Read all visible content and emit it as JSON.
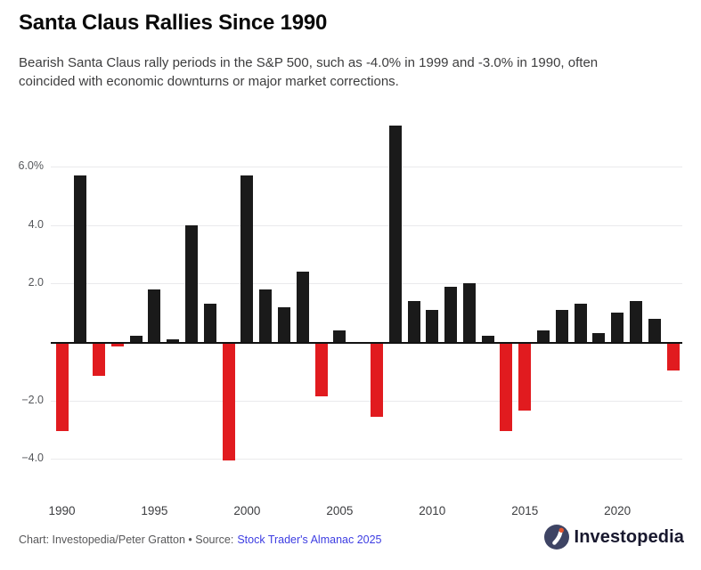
{
  "header": {
    "title": "Santa Claus Rallies Since 1990",
    "subtitle": "Bearish Santa Claus rally periods in the S&P 500, such as -4.0% in 1999 and -3.0% in 1990, often coincided with economic downturns or major market corrections."
  },
  "chart_data": {
    "type": "bar",
    "title": "Santa Claus Rallies Since 1990",
    "unit": "%",
    "x": [
      1990,
      1991,
      1992,
      1993,
      1994,
      1995,
      1996,
      1997,
      1998,
      1999,
      2000,
      2001,
      2002,
      2003,
      2004,
      2005,
      2006,
      2007,
      2008,
      2009,
      2010,
      2011,
      2012,
      2013,
      2014,
      2015,
      2016,
      2017,
      2018,
      2019,
      2020,
      2021,
      2022,
      2023
    ],
    "values": [
      -3.0,
      5.7,
      -1.1,
      -0.1,
      0.2,
      1.8,
      0.1,
      4.0,
      1.3,
      -4.0,
      5.7,
      1.8,
      1.2,
      2.4,
      -1.8,
      0.4,
      0.0,
      -2.5,
      7.4,
      1.4,
      1.1,
      1.9,
      2.0,
      0.2,
      -3.0,
      -2.3,
      0.4,
      1.1,
      1.3,
      0.3,
      1.0,
      1.4,
      0.8,
      -0.9
    ],
    "positive_color": "#1a1a1a",
    "negative_color": "#e11b1f",
    "y_ticks": [
      {
        "value": 6,
        "label": "6.0%"
      },
      {
        "value": 4,
        "label": "4.0"
      },
      {
        "value": 2,
        "label": "2.0"
      },
      {
        "value": -2,
        "label": "−2.0"
      },
      {
        "value": -4,
        "label": "−4.0"
      }
    ],
    "x_ticks": [
      1990,
      1995,
      2000,
      2005,
      2010,
      2015,
      2020
    ],
    "ylim": [
      -4.7,
      7.5
    ],
    "grid": true,
    "legend": "none"
  },
  "footer": {
    "credit": "Chart: Investopedia/Peter Gratton • Source:",
    "source_link": "Stock Trader's Almanac 2025",
    "logo_text": "Investopedia",
    "logo_colors": {
      "circle": "#3e4464",
      "mark": "#ffffff",
      "dot": "#e4562f"
    }
  }
}
